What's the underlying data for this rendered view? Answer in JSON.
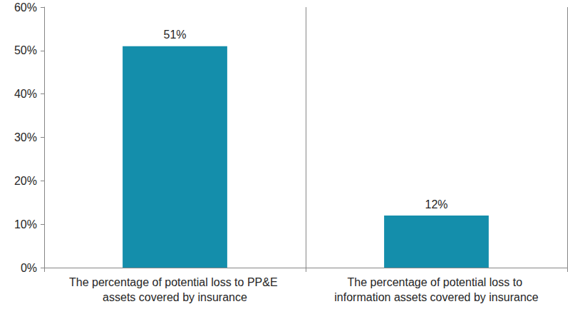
{
  "chart_data": {
    "type": "bar",
    "categories": [
      "The percentage of potential loss to PP&E assets covered by insurance",
      "The percentage of potential loss to information assets covered by insurance"
    ],
    "values": [
      51,
      12
    ],
    "value_labels": [
      "51%",
      "12%"
    ],
    "color": "#148eab",
    "ylim": [
      0,
      60
    ],
    "yticks": [
      {
        "value": 0,
        "label": "0%"
      },
      {
        "value": 10,
        "label": "10%"
      },
      {
        "value": 20,
        "label": "20%"
      },
      {
        "value": 30,
        "label": "30%"
      },
      {
        "value": 40,
        "label": "40%"
      },
      {
        "value": 50,
        "label": "50%"
      },
      {
        "value": 60,
        "label": "60%"
      }
    ],
    "grid": false,
    "data_labels": true
  }
}
